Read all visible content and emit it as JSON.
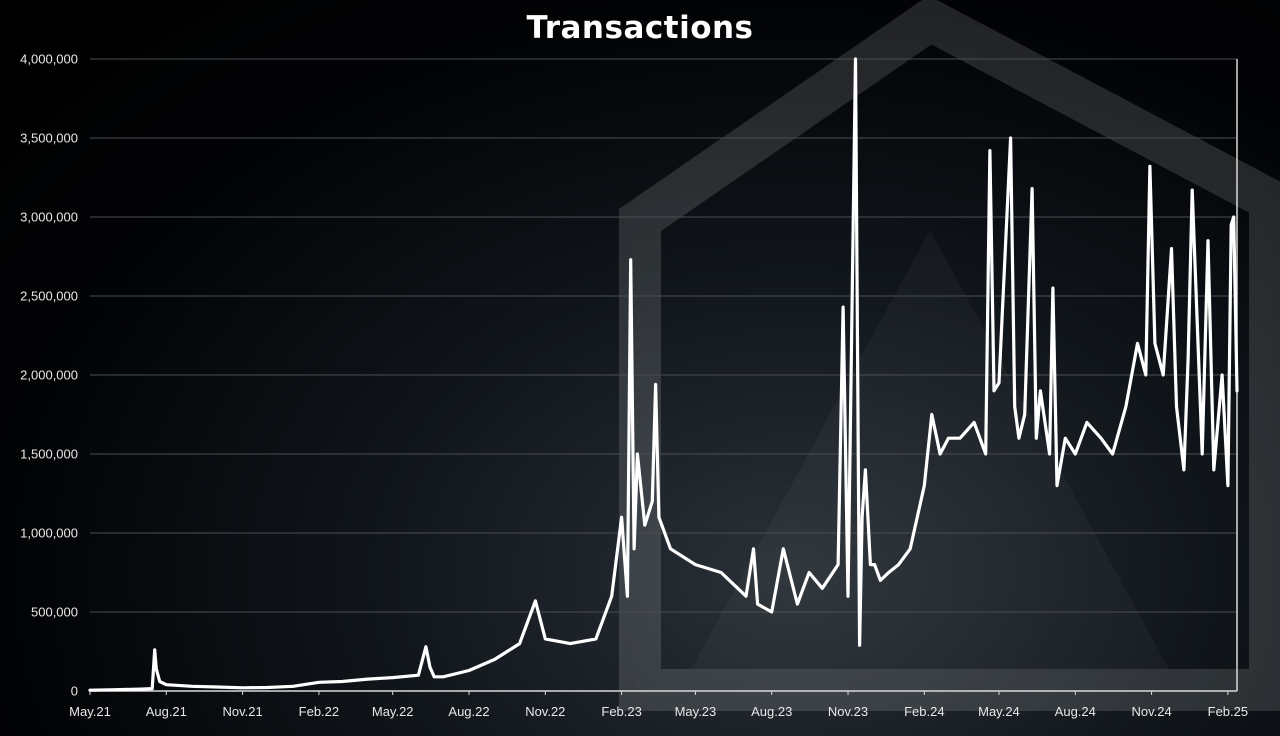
{
  "chart_data": {
    "type": "line",
    "title": "Transactions",
    "xlabel": "",
    "ylabel": "",
    "ylim": [
      0,
      4000000
    ],
    "y_ticks": [
      0,
      500000,
      1000000,
      1500000,
      2000000,
      2500000,
      3000000,
      3500000,
      4000000
    ],
    "y_tick_labels": [
      "0",
      "500,000",
      "1,000,000",
      "1,500,000",
      "2,000,000",
      "2,500,000",
      "3,000,000",
      "3,500,000",
      "4,000,000"
    ],
    "x_tick_labels": [
      "May.21",
      "Aug.21",
      "Nov.21",
      "Feb.22",
      "May.22",
      "Aug.22",
      "Nov.22",
      "Feb.23",
      "May.23",
      "Aug.23",
      "Nov.23",
      "Feb.24",
      "May.24",
      "Aug.24",
      "Nov.24",
      "Feb.25"
    ],
    "grid": true,
    "series": [
      {
        "color": "#ffffff",
        "x": [
          "2021-05-01",
          "2021-06-01",
          "2021-07-01",
          "2021-07-15",
          "2021-07-18",
          "2021-07-20",
          "2021-07-24",
          "2021-08-01",
          "2021-09-01",
          "2021-10-01",
          "2021-11-01",
          "2021-12-01",
          "2022-01-01",
          "2022-02-01",
          "2022-03-01",
          "2022-04-01",
          "2022-05-01",
          "2022-06-01",
          "2022-06-10",
          "2022-06-15",
          "2022-06-20",
          "2022-07-01",
          "2022-08-01",
          "2022-09-01",
          "2022-10-01",
          "2022-10-20",
          "2022-11-01",
          "2022-12-01",
          "2023-01-01",
          "2023-01-20",
          "2023-02-01",
          "2023-02-08",
          "2023-02-12",
          "2023-02-16",
          "2023-02-20",
          "2023-03-01",
          "2023-03-10",
          "2023-03-14",
          "2023-03-18",
          "2023-04-01",
          "2023-05-01",
          "2023-06-01",
          "2023-07-01",
          "2023-07-10",
          "2023-07-15",
          "2023-08-01",
          "2023-08-15",
          "2023-09-01",
          "2023-09-15",
          "2023-10-01",
          "2023-10-20",
          "2023-10-26",
          "2023-11-01",
          "2023-11-10",
          "2023-11-15",
          "2023-11-18",
          "2023-11-22",
          "2023-11-28",
          "2023-12-03",
          "2023-12-10",
          "2023-12-20",
          "2024-01-01",
          "2024-01-15",
          "2024-02-01",
          "2024-02-10",
          "2024-02-20",
          "2024-03-01",
          "2024-03-15",
          "2024-04-01",
          "2024-04-15",
          "2024-04-20",
          "2024-04-25",
          "2024-05-01",
          "2024-05-15",
          "2024-05-20",
          "2024-05-25",
          "2024-06-01",
          "2024-06-10",
          "2024-06-15",
          "2024-06-20",
          "2024-07-01",
          "2024-07-05",
          "2024-07-10",
          "2024-07-20",
          "2024-08-01",
          "2024-08-15",
          "2024-09-01",
          "2024-09-15",
          "2024-10-01",
          "2024-10-15",
          "2024-10-25",
          "2024-10-30",
          "2024-11-05",
          "2024-11-15",
          "2024-11-25",
          "2024-12-01",
          "2024-12-10",
          "2024-12-15",
          "2024-12-20",
          "2025-01-01",
          "2025-01-08",
          "2025-01-15",
          "2025-01-25",
          "2025-02-01",
          "2025-02-05",
          "2025-02-08",
          "2025-02-12"
        ],
        "values": [
          5000,
          8000,
          12000,
          15000,
          260000,
          140000,
          60000,
          40000,
          30000,
          25000,
          20000,
          22000,
          30000,
          55000,
          60000,
          75000,
          85000,
          100000,
          280000,
          150000,
          90000,
          90000,
          130000,
          200000,
          300000,
          570000,
          330000,
          300000,
          330000,
          600000,
          1100000,
          600000,
          2730000,
          900000,
          1500000,
          1050000,
          1200000,
          1940000,
          1100000,
          900000,
          800000,
          750000,
          600000,
          900000,
          550000,
          500000,
          900000,
          550000,
          750000,
          650000,
          800000,
          2430000,
          600000,
          4000000,
          290000,
          1100000,
          1400000,
          800000,
          800000,
          700000,
          750000,
          800000,
          900000,
          1300000,
          1750000,
          1500000,
          1600000,
          1600000,
          1700000,
          1500000,
          3420000,
          1900000,
          1950000,
          3500000,
          1800000,
          1600000,
          1750000,
          3180000,
          1600000,
          1900000,
          1500000,
          2550000,
          1300000,
          1600000,
          1500000,
          1700000,
          1600000,
          1500000,
          1800000,
          2200000,
          2000000,
          3320000,
          2200000,
          2000000,
          2800000,
          1800000,
          1400000,
          2100000,
          3170000,
          1500000,
          2850000,
          1400000,
          2000000,
          1300000,
          2950000,
          3000000,
          1900000
        ]
      }
    ]
  }
}
